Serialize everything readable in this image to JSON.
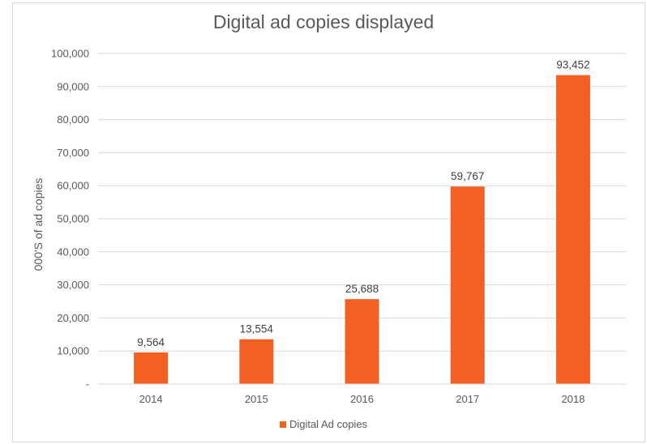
{
  "chart_data": {
    "type": "bar",
    "title": "Digital ad copies displayed",
    "xlabel": "",
    "ylabel": "000'S of ad copies",
    "categories": [
      "2014",
      "2015",
      "2016",
      "2017",
      "2018"
    ],
    "series": [
      {
        "name": "Digital Ad copies",
        "values": [
          9564,
          13554,
          25688,
          59767,
          93452
        ]
      }
    ],
    "data_labels": [
      "9,564",
      "13,554",
      "25,688",
      "59,767",
      "93,452"
    ],
    "ylim": [
      0,
      100000
    ],
    "yticks": [
      0,
      10000,
      20000,
      30000,
      40000,
      50000,
      60000,
      70000,
      80000,
      90000,
      100000
    ],
    "ytick_labels": [
      "-",
      "10,000",
      "20,000",
      "30,000",
      "40,000",
      "50,000",
      "60,000",
      "70,000",
      "80,000",
      "90,000",
      "100,000"
    ],
    "grid": true,
    "legend_position": "bottom",
    "bar_color": "#f26122",
    "grid_color": "#d9d9d9"
  }
}
